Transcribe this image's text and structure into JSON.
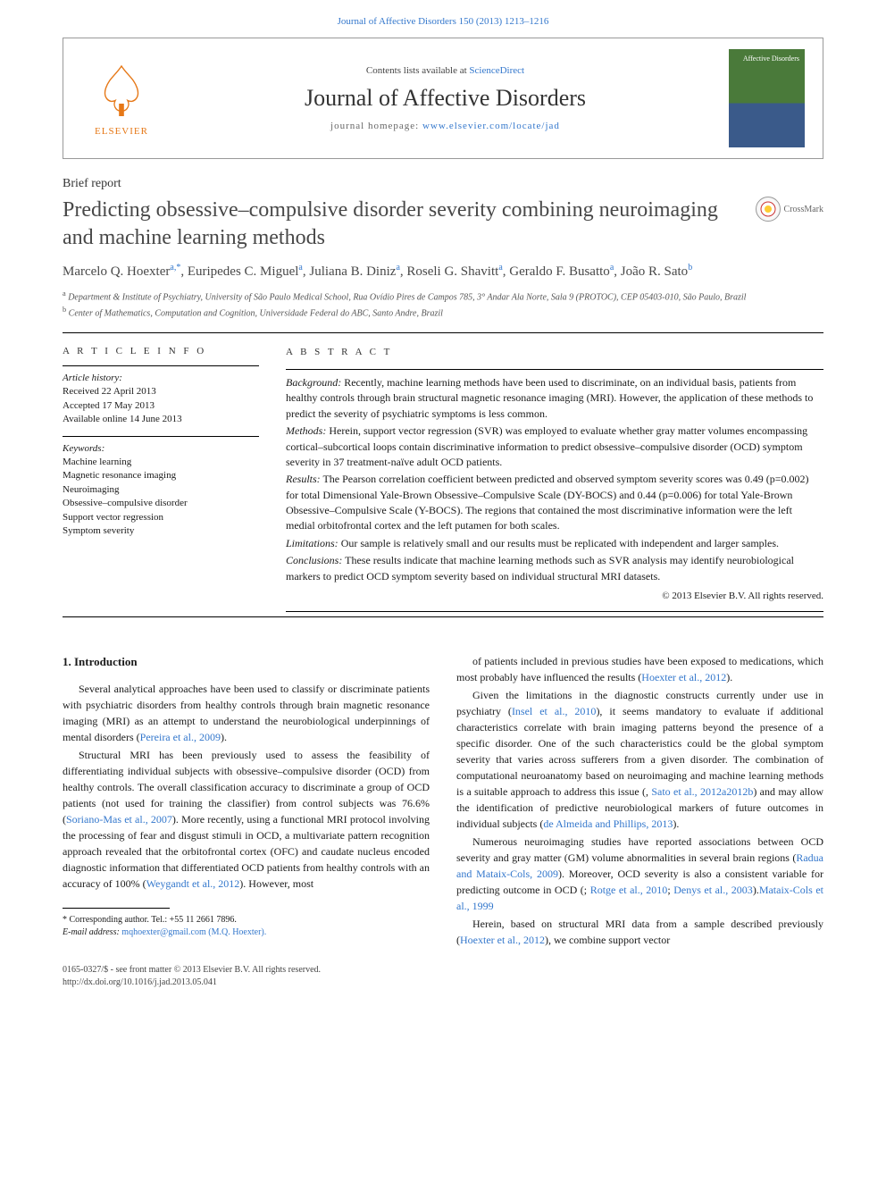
{
  "top_link": "Journal of Affective Disorders 150 (2013) 1213–1216",
  "header": {
    "contents_prefix": "Contents lists available at ",
    "contents_link": "ScienceDirect",
    "journal_name": "Journal of Affective Disorders",
    "homepage_prefix": "journal homepage: ",
    "homepage_link": "www.elsevier.com/locate/jad",
    "elsevier_label": "ELSEVIER",
    "cover_text": "Affective Disorders"
  },
  "article_type": "Brief report",
  "title": "Predicting obsessive–compulsive disorder severity combining neuroimaging and machine learning methods",
  "crossmark_label": "CrossMark",
  "authors_html": "Marcelo Q. Hoexter",
  "author_list": [
    {
      "name": "Marcelo Q. Hoexter",
      "sup": "a,*"
    },
    {
      "name": "Euripedes C. Miguel",
      "sup": "a"
    },
    {
      "name": "Juliana B. Diniz",
      "sup": "a"
    },
    {
      "name": "Roseli G. Shavitt",
      "sup": "a"
    },
    {
      "name": "Geraldo F. Busatto",
      "sup": "a"
    },
    {
      "name": "João R. Sato",
      "sup": "b"
    }
  ],
  "affiliations": [
    {
      "sup": "a",
      "text": "Department & Institute of Psychiatry, University of São Paulo Medical School, Rua Ovídio Pires de Campos 785, 3° Andar Ala Norte, Sala 9 (PROTOC), CEP 05403-010, São Paulo, Brazil"
    },
    {
      "sup": "b",
      "text": "Center of Mathematics, Computation and Cognition, Universidade Federal do ABC, Santo Andre, Brazil"
    }
  ],
  "info": {
    "heading": "A R T I C L E   I N F O",
    "history_label": "Article history:",
    "history": [
      "Received 22 April 2013",
      "Accepted 17 May 2013",
      "Available online 14 June 2013"
    ],
    "keywords_label": "Keywords:",
    "keywords": [
      "Machine learning",
      "Magnetic resonance imaging",
      "Neuroimaging",
      "Obsessive–compulsive disorder",
      "Support vector regression",
      "Symptom severity"
    ]
  },
  "abstract": {
    "heading": "A B S T R A C T",
    "sections": [
      {
        "label": "Background:",
        "text": " Recently, machine learning methods have been used to discriminate, on an individual basis, patients from healthy controls through brain structural magnetic resonance imaging (MRI). However, the application of these methods to predict the severity of psychiatric symptoms is less common."
      },
      {
        "label": "Methods:",
        "text": " Herein, support vector regression (SVR) was employed to evaluate whether gray matter volumes encompassing cortical–subcortical loops contain discriminative information to predict obsessive–compulsive disorder (OCD) symptom severity in 37 treatment-naïve adult OCD patients."
      },
      {
        "label": "Results:",
        "text": " The Pearson correlation coefficient between predicted and observed symptom severity scores was 0.49 (p=0.002) for total Dimensional Yale-Brown Obsessive–Compulsive Scale (DY-BOCS) and 0.44 (p=0.006) for total Yale-Brown Obsessive–Compulsive Scale (Y-BOCS). The regions that contained the most discriminative information were the left medial orbitofrontal cortex and the left putamen for both scales."
      },
      {
        "label": "Limitations:",
        "text": " Our sample is relatively small and our results must be replicated with independent and larger samples."
      },
      {
        "label": "Conclusions:",
        "text": " These results indicate that machine learning methods such as SVR analysis may identify neurobiological markers to predict OCD symptom severity based on individual structural MRI datasets."
      }
    ],
    "copyright": "© 2013 Elsevier B.V. All rights reserved."
  },
  "body": {
    "section_heading": "1.  Introduction",
    "left_col": [
      {
        "text": "Several analytical approaches have been used to classify or discriminate patients with psychiatric disorders from healthy controls through brain magnetic resonance imaging (MRI) as an attempt to understand the neurobiological underpinnings of mental disorders (",
        "cite": "Pereira et al., 2009",
        "tail": ")."
      },
      {
        "text": "Structural MRI has been previously used to assess the feasibility of differentiating individual subjects with obsessive–compulsive disorder (OCD) from healthy controls. The overall classification accuracy to discriminate a group of OCD patients (not used for training the classifier) from control subjects was 76.6% (",
        "cite": "Soriano-Mas et al., 2007",
        "tail": "). More recently, using a functional MRI protocol involving the processing of fear and disgust stimuli in OCD, a multivariate pattern recognition approach revealed that the orbitofrontal cortex (OFC) and caudate nucleus encoded diagnostic information that differentiated OCD patients from healthy controls with an accuracy of 100% (",
        "cite2": "Weygandt et al., 2012",
        "tail2": "). However, most"
      }
    ],
    "right_col": [
      {
        "text": "of patients included in previous studies have been exposed to medications, which most probably have influenced the results (",
        "cite": "Hoexter et al., 2012",
        "tail": ")."
      },
      {
        "text": "Given the limitations in the diagnostic constructs currently under use in psychiatry (",
        "cite": "Insel et al., 2010",
        "tail": "), it seems mandatory to evaluate if additional characteristics correlate with brain imaging patterns beyond the presence of a specific disorder. One of the such characteristics could be the global symptom severity that varies across sufferers from a given disorder. The combination of computational neuroanatomy based on neuroimaging and machine learning methods is a suitable approach to address this issue (",
        "cite2": "Sato et al., 2012a",
        "mid": ", ",
        "cite3": "2012b",
        "tail2": ") and may allow the identification of predictive neurobiological markers of future outcomes in individual subjects (",
        "cite4": "de Almeida and Phillips, 2013",
        "tail3": ")."
      },
      {
        "text": "Numerous neuroimaging studies have reported associations between OCD severity and gray matter (GM) volume abnormalities in several brain regions (",
        "cite": "Radua and Mataix-Cols, 2009",
        "mid": "; ",
        "cite2": "Rotge et al., 2010",
        "tail": "). Moreover, OCD severity is also a consistent variable for predicting outcome in OCD (",
        "cite3": "Denys et al., 2003",
        "mid2": "; ",
        "cite4": "Mataix-Cols et al., 1999",
        "tail2": ")."
      },
      {
        "text": "Herein, based on structural MRI data from a sample described previously (",
        "cite": "Hoexter et al., 2012",
        "tail": "), we combine support vector"
      }
    ]
  },
  "footnotes": {
    "corr": "* Corresponding author. Tel.: +55 11 2661 7896.",
    "email_label": "E-mail address: ",
    "email": "mqhoexter@gmail.com (M.Q. Hoexter)."
  },
  "bottom": {
    "line1": "0165-0327/$ - see front matter © 2013 Elsevier B.V. All rights reserved.",
    "line2": "http://dx.doi.org/10.1016/j.jad.2013.05.041"
  },
  "colors": {
    "link": "#3377cc",
    "elsevier_orange": "#e67817",
    "cover_green": "#4a7a3a",
    "cover_blue": "#3a5a8a"
  }
}
